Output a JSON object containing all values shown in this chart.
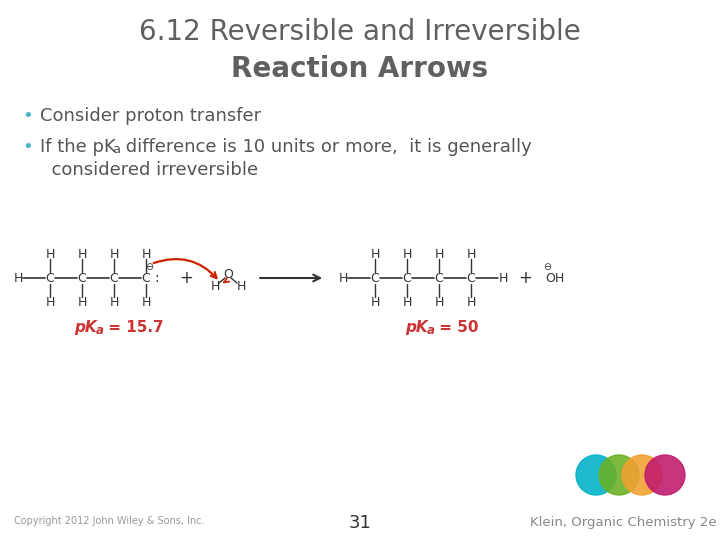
{
  "title_line1": "6.12 Reversible and Irreversible",
  "title_line2": "Reaction Arrows",
  "bullet1": "Consider proton transfer",
  "bullet_color": "#4db3c8",
  "text_color": "#555555",
  "pka_color": "#cc3333",
  "copyright": "Copyright 2012 John Wiley & Sons, Inc.",
  "page_num": "31",
  "klein_text": "Klein, Organic Chemistry 2e",
  "klein_color": "#888888",
  "bg_color": "#ffffff",
  "title_color": "#606060",
  "struct_color": "#333333",
  "arrow_color": "#333333",
  "curly_arrow_color": "#cc2200",
  "circle_colors": [
    "#00b0c8",
    "#6ab023",
    "#f0a030",
    "#c0186c"
  ]
}
